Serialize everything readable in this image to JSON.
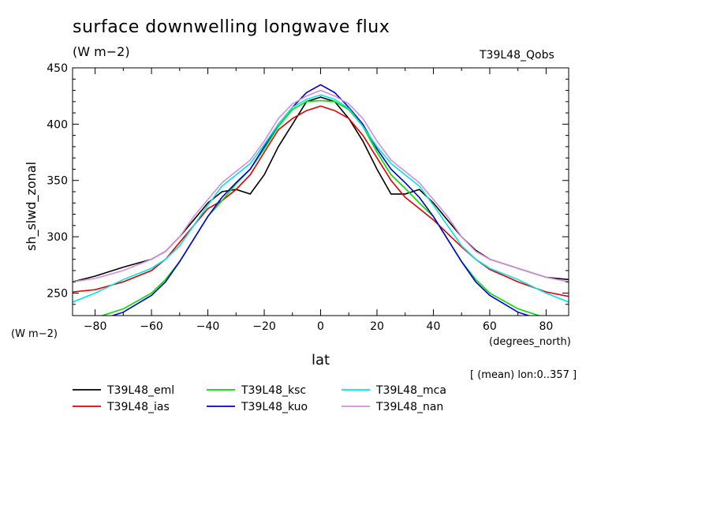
{
  "chart_data": {
    "type": "line",
    "title": "surface downwelling longwave flux",
    "units_label": "(W m−2)",
    "dataset_label": "T39L48_Qobs",
    "ylabel": "sh_slwd_zonal",
    "yunits": "(W m−2)",
    "xlabel": "lat",
    "xunits": "(degrees_north)",
    "note": "[ (mean) lon:0..357 ]",
    "xlim": [
      -88,
      88
    ],
    "ylim": [
      230,
      450
    ],
    "xticks": [
      -80,
      -60,
      -40,
      -20,
      0,
      20,
      40,
      60,
      80
    ],
    "xtick_labels": [
      "−80",
      "−60",
      "−40",
      "−20",
      "0",
      "20",
      "40",
      "60",
      "80"
    ],
    "yticks": [
      250,
      300,
      350,
      400,
      450
    ],
    "ytick_labels": [
      "250",
      "300",
      "350",
      "400",
      "450"
    ],
    "grid": false,
    "legend_position": "bottom",
    "series": [
      {
        "name": "T39L48_eml",
        "color": "#000000",
        "x": [
          -88,
          -80,
          -70,
          -60,
          -55,
          -50,
          -45,
          -40,
          -35,
          -30,
          -25,
          -20,
          -15,
          -10,
          -5,
          0,
          5,
          10,
          15,
          20,
          25,
          30,
          35,
          40,
          45,
          50,
          55,
          60,
          70,
          80,
          88
        ],
        "y": [
          260,
          265,
          273,
          280,
          287,
          300,
          315,
          330,
          340,
          342,
          338,
          355,
          380,
          400,
          420,
          424,
          420,
          405,
          385,
          360,
          338,
          338,
          342,
          330,
          315,
          300,
          288,
          280,
          272,
          264,
          262
        ]
      },
      {
        "name": "T39L48_ias",
        "color": "#e00000",
        "x": [
          -88,
          -80,
          -70,
          -60,
          -55,
          -50,
          -45,
          -40,
          -35,
          -30,
          -25,
          -20,
          -15,
          -10,
          -5,
          0,
          5,
          10,
          15,
          20,
          25,
          30,
          35,
          40,
          45,
          50,
          55,
          60,
          70,
          80,
          88
        ],
        "y": [
          251,
          253,
          260,
          270,
          280,
          295,
          310,
          325,
          332,
          342,
          355,
          375,
          395,
          405,
          412,
          416,
          412,
          405,
          390,
          370,
          350,
          335,
          325,
          315,
          303,
          291,
          280,
          271,
          260,
          251,
          247
        ]
      },
      {
        "name": "T39L48_ksc",
        "color": "#00dd00",
        "x": [
          -88,
          -80,
          -70,
          -60,
          -55,
          -50,
          -45,
          -40,
          -35,
          -30,
          -25,
          -20,
          -15,
          -10,
          -5,
          0,
          5,
          10,
          15,
          20,
          25,
          30,
          35,
          40,
          45,
          50,
          55,
          60,
          70,
          80,
          88
        ],
        "y": [
          225,
          228,
          236,
          250,
          262,
          278,
          298,
          318,
          332,
          347,
          360,
          378,
          398,
          413,
          420,
          421,
          420,
          413,
          398,
          375,
          355,
          343,
          330,
          318,
          298,
          278,
          262,
          250,
          236,
          228,
          225
        ]
      },
      {
        "name": "T39L48_kuo",
        "color": "#0000d0",
        "x": [
          -88,
          -80,
          -70,
          -60,
          -55,
          -50,
          -45,
          -40,
          -35,
          -30,
          -25,
          -20,
          -15,
          -10,
          -5,
          0,
          5,
          10,
          15,
          20,
          25,
          30,
          35,
          40,
          45,
          50,
          55,
          60,
          70,
          80,
          88
        ],
        "y": [
          222,
          225,
          233,
          248,
          260,
          278,
          298,
          318,
          335,
          348,
          360,
          380,
          400,
          415,
          428,
          435,
          428,
          415,
          400,
          378,
          360,
          348,
          335,
          318,
          298,
          278,
          260,
          248,
          233,
          225,
          222
        ]
      },
      {
        "name": "T39L48_mca",
        "color": "#00e5e5",
        "x": [
          -88,
          -80,
          -70,
          -60,
          -55,
          -50,
          -45,
          -40,
          -35,
          -30,
          -25,
          -20,
          -15,
          -10,
          -5,
          0,
          5,
          10,
          15,
          20,
          25,
          30,
          35,
          40,
          45,
          50,
          55,
          60,
          70,
          80,
          88
        ],
        "y": [
          242,
          250,
          262,
          272,
          280,
          292,
          310,
          328,
          345,
          355,
          365,
          382,
          400,
          415,
          422,
          426,
          422,
          414,
          398,
          380,
          365,
          355,
          345,
          328,
          310,
          292,
          280,
          272,
          262,
          250,
          242
        ]
      },
      {
        "name": "T39L48_nan",
        "color": "#d090d8",
        "x": [
          -88,
          -80,
          -70,
          -60,
          -55,
          -50,
          -45,
          -40,
          -35,
          -30,
          -25,
          -20,
          -15,
          -10,
          -5,
          0,
          5,
          10,
          15,
          20,
          25,
          30,
          35,
          40,
          45,
          50,
          55,
          60,
          70,
          80,
          88
        ],
        "y": [
          260,
          263,
          270,
          280,
          287,
          300,
          318,
          333,
          348,
          358,
          368,
          385,
          405,
          418,
          425,
          430,
          425,
          418,
          405,
          385,
          368,
          358,
          348,
          333,
          318,
          300,
          287,
          280,
          272,
          264,
          260
        ]
      }
    ]
  }
}
